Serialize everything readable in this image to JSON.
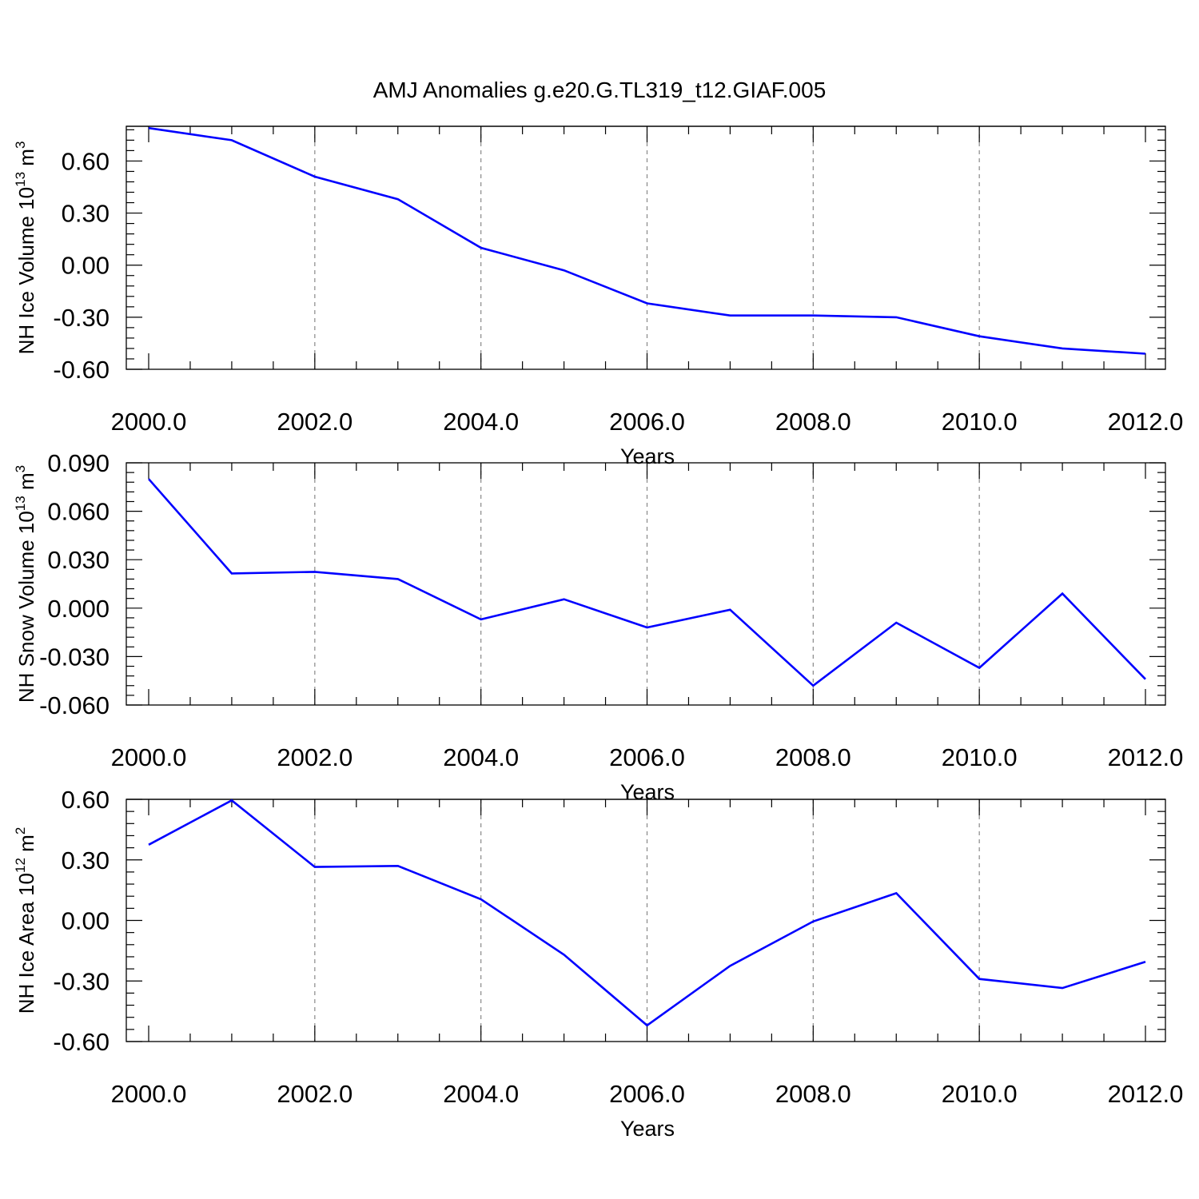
{
  "title": "AMJ Anomalies g.e20.G.TL319_t12.GIAF.005",
  "colors": {
    "series": "#0000ff",
    "axis": "#000000",
    "grid": "#888888"
  },
  "chart_data": [
    {
      "type": "line",
      "title": "AMJ Anomalies g.e20.G.TL319_t12.GIAF.005",
      "xlabel": "Years",
      "ylabel": {
        "text": "NH Ice Volume 10",
        "exp": "13",
        "unit": " m",
        "unit_exp": "3"
      },
      "xlim": [
        2000,
        2012
      ],
      "ylim": [
        -0.6,
        0.8
      ],
      "x_ticks": [
        2000,
        2002,
        2004,
        2006,
        2008,
        2010,
        2012
      ],
      "x_tick_labels": [
        "2000.0",
        "2002.0",
        "2004.0",
        "2006.0",
        "2008.0",
        "2010.0",
        "2012.0"
      ],
      "y_ticks": [
        -0.6,
        -0.3,
        0.0,
        0.3,
        0.6
      ],
      "y_tick_labels": [
        "-0.60",
        "-0.30",
        "0.00",
        "0.30",
        "0.60"
      ],
      "y_minor_step": 0.06,
      "ref_line": 0.8,
      "grid": "vertical dashed at labeled years",
      "series": [
        {
          "name": "NH Ice Volume",
          "x": [
            2000,
            2001,
            2002,
            2003,
            2004,
            2005,
            2006,
            2007,
            2008,
            2009,
            2010,
            2011,
            2012
          ],
          "values": [
            0.79,
            0.72,
            0.51,
            0.38,
            0.1,
            -0.03,
            -0.22,
            -0.29,
            -0.29,
            -0.3,
            -0.41,
            -0.48,
            -0.51
          ]
        }
      ]
    },
    {
      "type": "line",
      "xlabel": "Years",
      "ylabel": {
        "text": "NH Snow Volume 10",
        "exp": "13",
        "unit": " m",
        "unit_exp": "3"
      },
      "xlim": [
        2000,
        2012
      ],
      "ylim": [
        -0.06,
        0.09
      ],
      "x_ticks": [
        2000,
        2002,
        2004,
        2006,
        2008,
        2010,
        2012
      ],
      "x_tick_labels": [
        "2000.0",
        "2002.0",
        "2004.0",
        "2006.0",
        "2008.0",
        "2010.0",
        "2012.0"
      ],
      "y_ticks": [
        -0.06,
        -0.03,
        0.0,
        0.03,
        0.06,
        0.09
      ],
      "y_tick_labels": [
        "-0.060",
        "-0.030",
        "0.000",
        "0.030",
        "0.060",
        "0.090"
      ],
      "y_minor_step": 0.006,
      "ref_line": null,
      "grid": "vertical dashed at labeled years",
      "series": [
        {
          "name": "NH Snow Volume",
          "x": [
            2000,
            2001,
            2002,
            2003,
            2004,
            2005,
            2006,
            2007,
            2008,
            2009,
            2010,
            2011,
            2012
          ],
          "values": [
            0.08,
            0.0215,
            0.0225,
            0.018,
            -0.007,
            0.0055,
            -0.012,
            -0.001,
            -0.048,
            -0.009,
            -0.037,
            0.009,
            -0.044
          ]
        }
      ]
    },
    {
      "type": "line",
      "xlabel": "Years",
      "ylabel": {
        "text": "NH Ice Area 10",
        "exp": "12",
        "unit": " m",
        "unit_exp": "2"
      },
      "xlim": [
        2000,
        2012
      ],
      "ylim": [
        -0.6,
        0.6
      ],
      "x_ticks": [
        2000,
        2002,
        2004,
        2006,
        2008,
        2010,
        2012
      ],
      "x_tick_labels": [
        "2000.0",
        "2002.0",
        "2004.0",
        "2006.0",
        "2008.0",
        "2010.0",
        "2012.0"
      ],
      "y_ticks": [
        -0.6,
        -0.3,
        0.0,
        0.3,
        0.6
      ],
      "y_tick_labels": [
        "-0.60",
        "-0.30",
        "0.00",
        "0.30",
        "0.60"
      ],
      "y_minor_step": 0.06,
      "ref_line": 0.6,
      "grid": "vertical dashed at labeled years",
      "series": [
        {
          "name": "NH Ice Area",
          "x": [
            2000,
            2001,
            2002,
            2003,
            2004,
            2005,
            2006,
            2007,
            2008,
            2009,
            2010,
            2011,
            2012
          ],
          "values": [
            0.375,
            0.595,
            0.265,
            0.27,
            0.105,
            -0.17,
            -0.52,
            -0.225,
            -0.005,
            0.135,
            -0.29,
            -0.335,
            -0.205
          ]
        }
      ]
    }
  ]
}
